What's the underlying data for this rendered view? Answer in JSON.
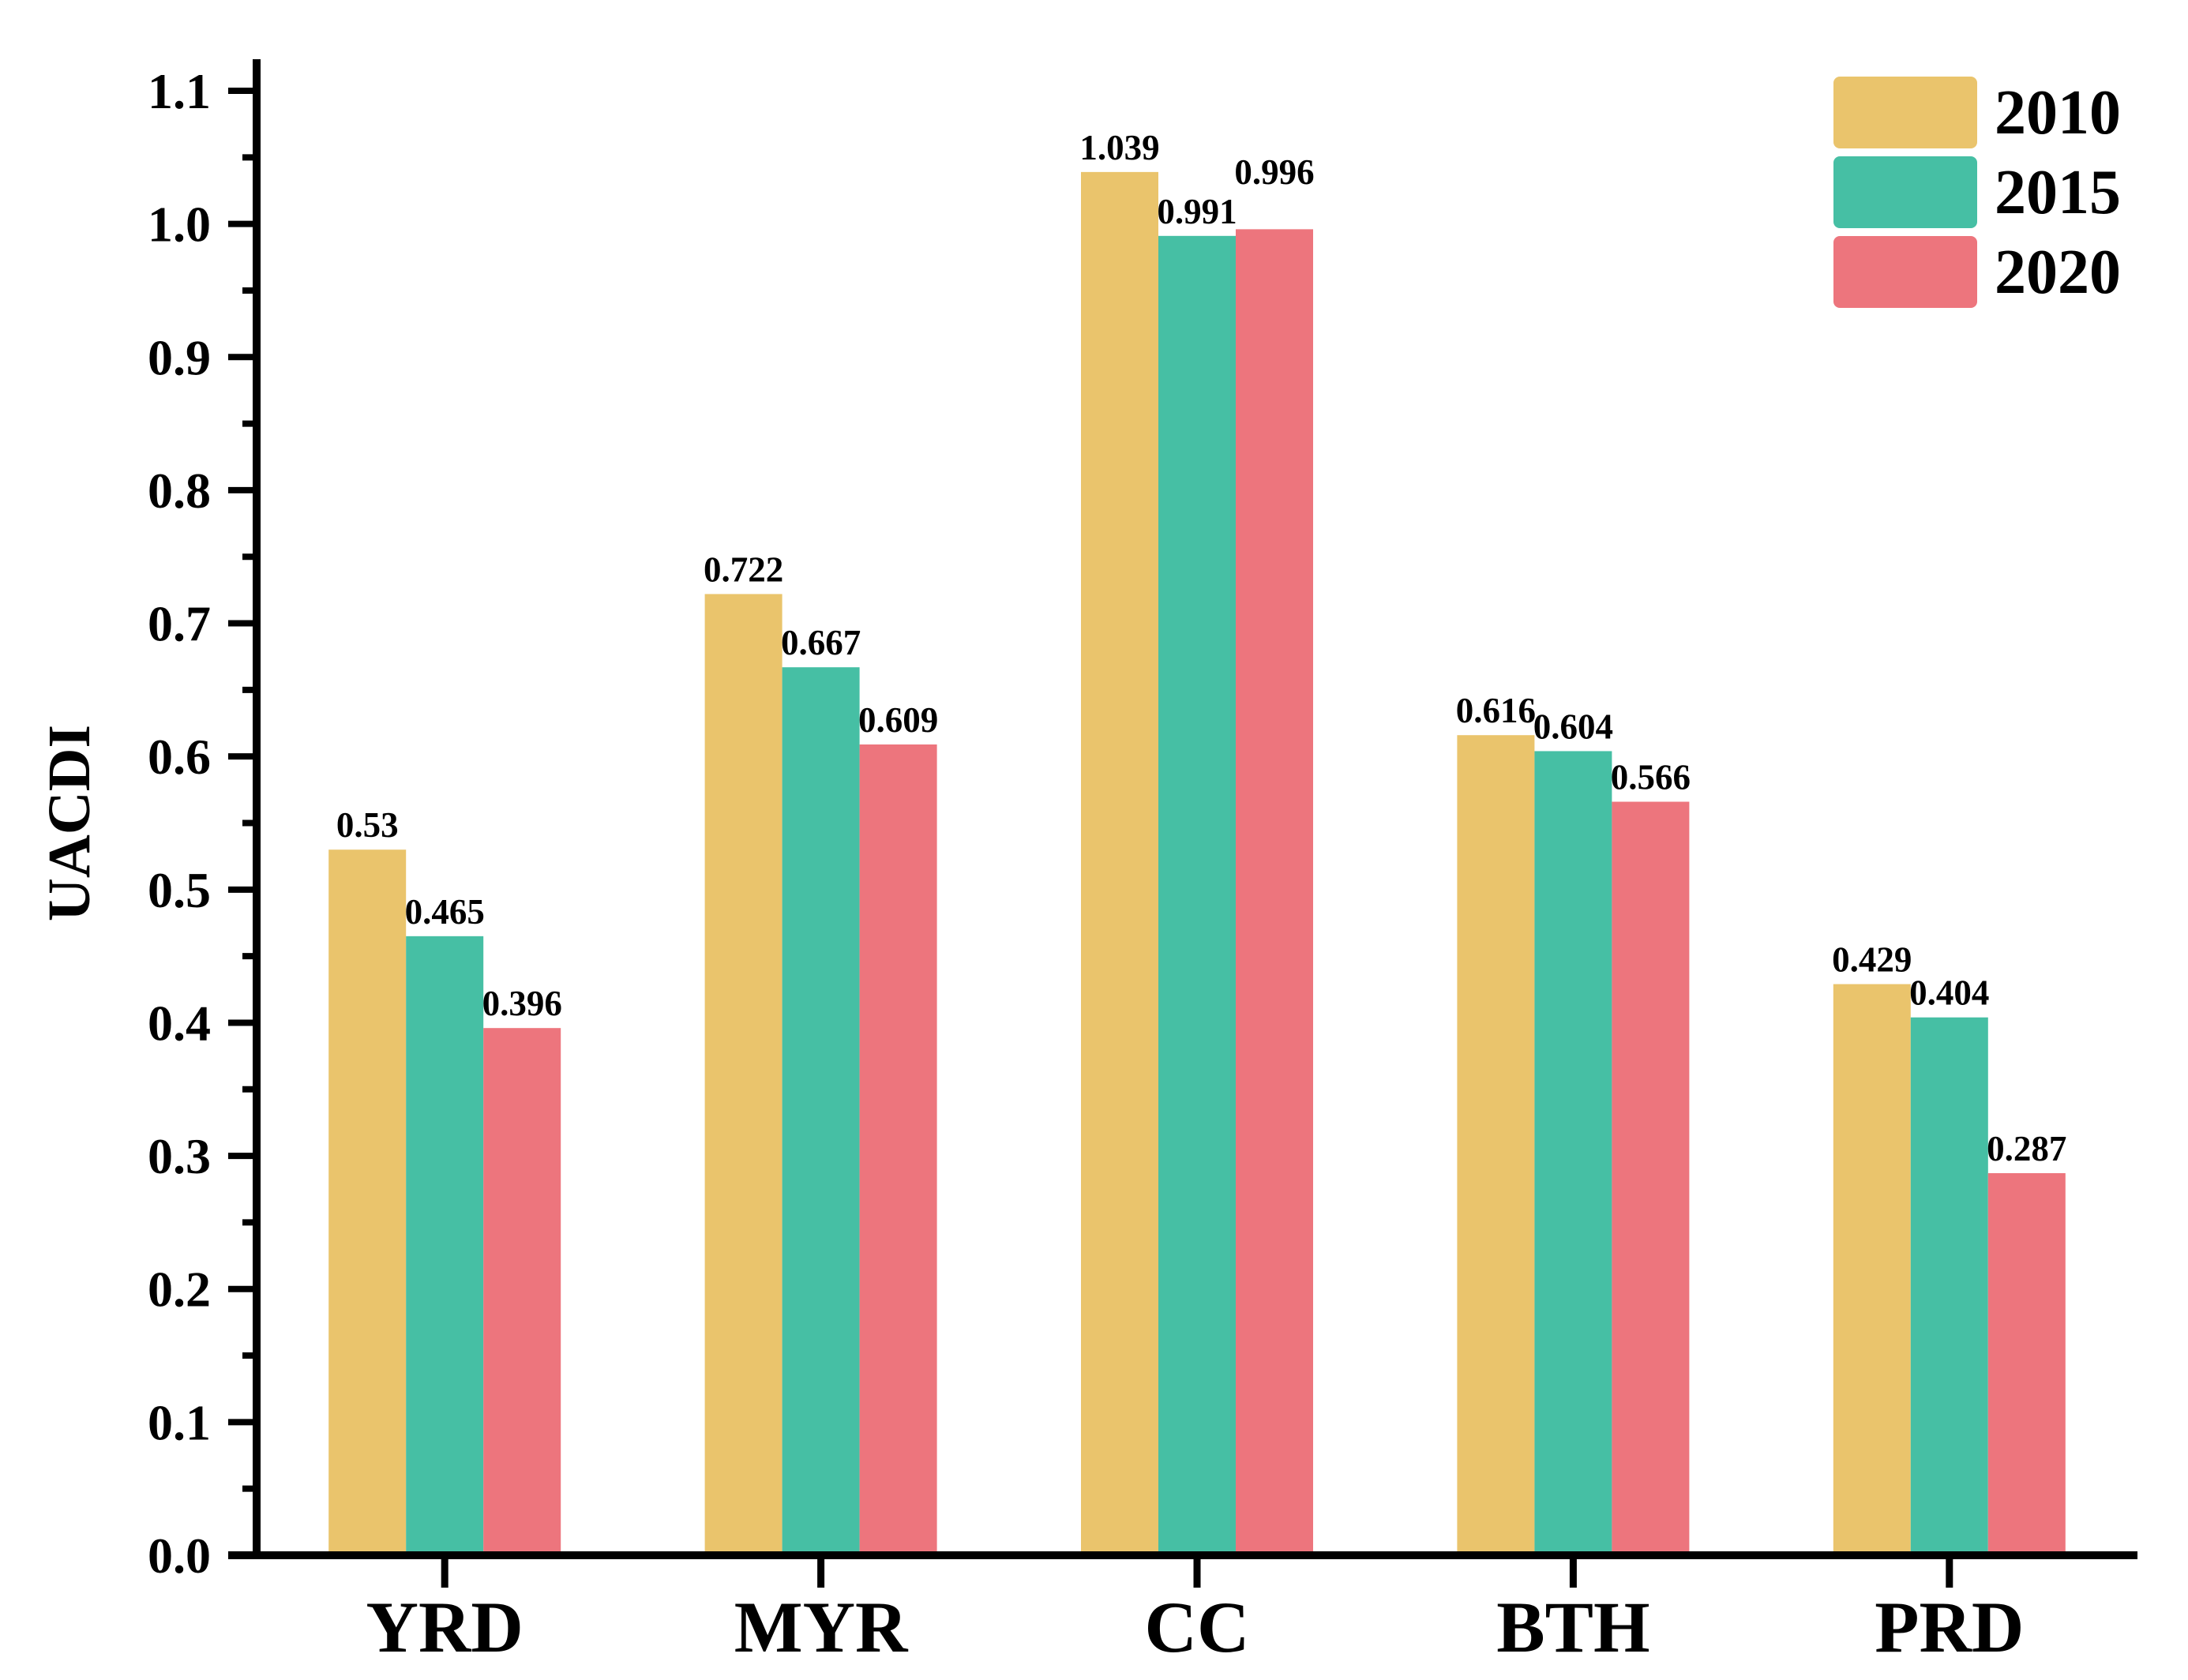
{
  "page": {
    "background": "#FFFFFF"
  },
  "chart_data": {
    "type": "bar",
    "title": "",
    "xlabel": "",
    "ylabel": "UACDI",
    "categories": [
      "YRD",
      "MYR",
      "CC",
      "BTH",
      "PRD"
    ],
    "series": [
      {
        "name": "2010",
        "color": "#EAC46C",
        "values": [
          0.53,
          0.722,
          1.039,
          0.616,
          0.429
        ],
        "labels": [
          "0.53",
          "0.722",
          "1.039",
          "0.616",
          "0.429"
        ]
      },
      {
        "name": "2015",
        "color": "#46BFA4",
        "values": [
          0.465,
          0.667,
          0.991,
          0.604,
          0.404
        ],
        "labels": [
          "0.465",
          "0.667",
          "0.991",
          "0.604",
          "0.404"
        ]
      },
      {
        "name": "2020",
        "color": "#ED757D",
        "values": [
          0.396,
          0.609,
          0.996,
          0.566,
          0.287
        ],
        "labels": [
          "0.396",
          "0.609",
          "0.996",
          "0.566",
          "0.287"
        ]
      }
    ],
    "ylim": [
      0.0,
      1.1
    ],
    "ytick_step": 0.1,
    "yminor_step": 0.05,
    "ytick_labels": [
      "0.0",
      "0.1",
      "0.2",
      "0.3",
      "0.4",
      "0.5",
      "0.6",
      "0.7",
      "0.8",
      "0.9",
      "1.0",
      "1.1"
    ],
    "grid": false,
    "bar_value_labels_shown": true,
    "legend": {
      "position": "top-right",
      "entries": [
        "2010",
        "2015",
        "2020"
      ]
    },
    "axis_color": "#000000",
    "text_color": "#000000",
    "background": "#FFFFFF"
  }
}
